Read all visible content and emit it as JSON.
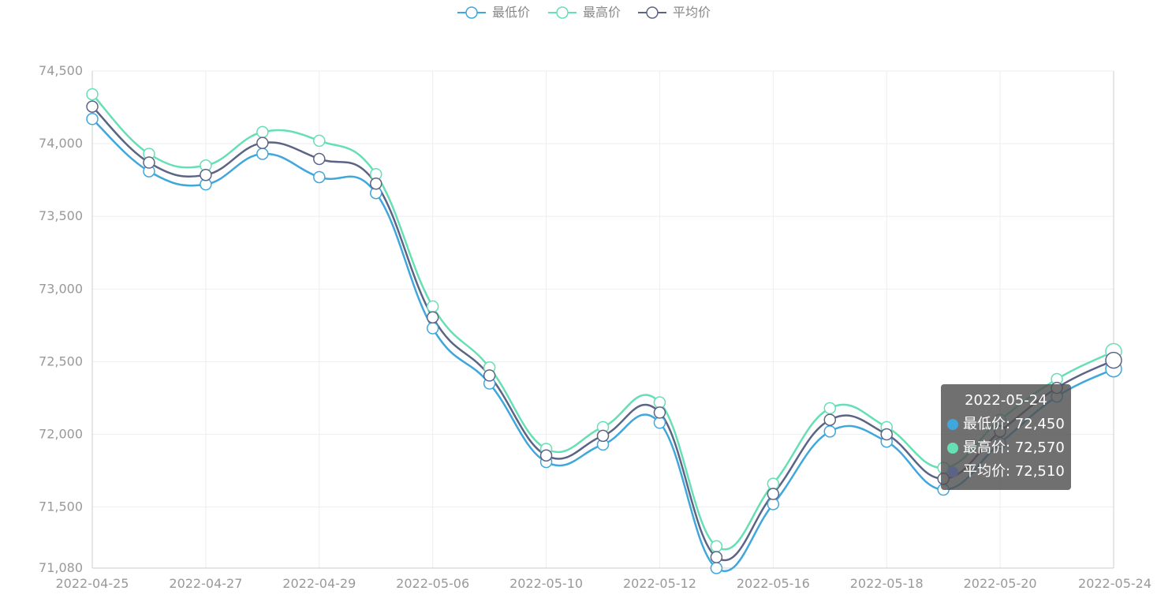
{
  "chart_data": {
    "type": "line",
    "title": "",
    "xlabel": "",
    "ylabel": "",
    "x": [
      "2022-04-25",
      "2022-04-26",
      "2022-04-27",
      "2022-04-28",
      "2022-04-29",
      "2022-05-05",
      "2022-05-06",
      "2022-05-09",
      "2022-05-10",
      "2022-05-11",
      "2022-05-12",
      "2022-05-13",
      "2022-05-16",
      "2022-05-17",
      "2022-05-18",
      "2022-05-19",
      "2022-05-20",
      "2022-05-23",
      "2022-05-24"
    ],
    "x_tick_labels": [
      "2022-04-25",
      "2022-04-27",
      "2022-04-29",
      "2022-05-06",
      "2022-05-10",
      "2022-05-12",
      "2022-05-16",
      "2022-05-18",
      "2022-05-20",
      "2022-05-24"
    ],
    "ylim": [
      71080,
      74500
    ],
    "y_tick_labels": [
      "71,080",
      "71,500",
      "72,000",
      "72,500",
      "73,000",
      "73,500",
      "74,000",
      "74,500"
    ],
    "y_tick_values": [
      71080,
      71500,
      72000,
      72500,
      73000,
      73500,
      74000,
      74500
    ],
    "grid": true,
    "legend_position": "top-center",
    "series": [
      {
        "name": "最低价",
        "color": "#3fa7dc",
        "values": [
          74170,
          73810,
          73720,
          73930,
          73770,
          73660,
          72730,
          72350,
          71810,
          71930,
          72080,
          71080,
          71520,
          72020,
          71950,
          71620,
          71940,
          72260,
          72450
        ]
      },
      {
        "name": "最高价",
        "color": "#66dfb4",
        "values": [
          74340,
          73930,
          73850,
          74080,
          74020,
          73790,
          72880,
          72460,
          71900,
          72050,
          72220,
          71230,
          71660,
          72180,
          72050,
          71770,
          72100,
          72380,
          72570
        ]
      },
      {
        "name": "平均价",
        "color": "#5c6486",
        "values": [
          74255,
          73870,
          73785,
          74005,
          73895,
          73725,
          72805,
          72405,
          71855,
          71990,
          72150,
          71155,
          71590,
          72100,
          72000,
          71695,
          72020,
          72320,
          72510
        ]
      }
    ],
    "tooltip": {
      "title": "2022-05-24",
      "rows": [
        {
          "label": "最低价: 72,450",
          "color": "#3fa7dc"
        },
        {
          "label": "最高价: 72,570",
          "color": "#66dfb4"
        },
        {
          "label": "平均价: 72,510",
          "color": "#5c6486"
        }
      ]
    }
  }
}
